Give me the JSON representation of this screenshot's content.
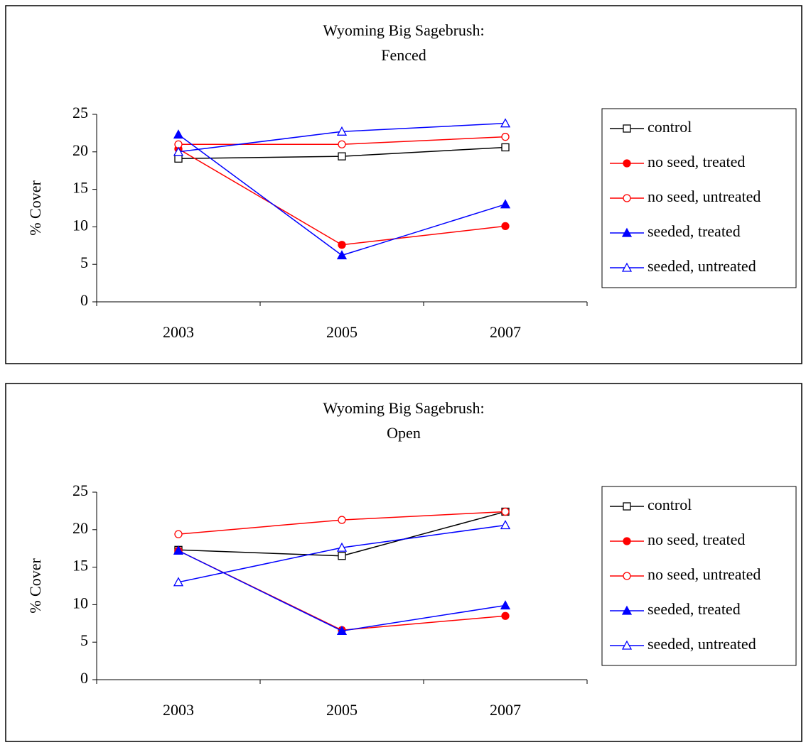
{
  "chart_data": [
    {
      "type": "line",
      "title": [
        "Wyoming Big Sagebrush:",
        "Fenced"
      ],
      "ylabel": "% Cover",
      "categories": [
        "2003",
        "2005",
        "2007"
      ],
      "ylim": [
        0,
        25
      ],
      "yticks": [
        0,
        5,
        10,
        15,
        20,
        25
      ],
      "legend": "right",
      "series": [
        {
          "name": "control",
          "color": "#000000",
          "marker": "square",
          "filled": false,
          "values": [
            19.1,
            19.4,
            20.6
          ]
        },
        {
          "name": "no seed, treated",
          "color": "#ff0000",
          "marker": "circle",
          "filled": true,
          "values": [
            20.4,
            7.6,
            10.1
          ]
        },
        {
          "name": "no seed, untreated",
          "color": "#ff0000",
          "marker": "circle",
          "filled": false,
          "values": [
            21.0,
            21.0,
            22.0
          ]
        },
        {
          "name": "seeded, treated",
          "color": "#0000ff",
          "marker": "triangle",
          "filled": true,
          "values": [
            22.3,
            6.2,
            13.0
          ]
        },
        {
          "name": "seeded, untreated",
          "color": "#0000ff",
          "marker": "triangle",
          "filled": false,
          "values": [
            20.0,
            22.7,
            23.8
          ]
        }
      ]
    },
    {
      "type": "line",
      "title": [
        "Wyoming Big Sagebrush:",
        "Open"
      ],
      "ylabel": "% Cover",
      "categories": [
        "2003",
        "2005",
        "2007"
      ],
      "ylim": [
        0,
        25
      ],
      "yticks": [
        0,
        5,
        10,
        15,
        20,
        25
      ],
      "legend": "right",
      "series": [
        {
          "name": "control",
          "color": "#000000",
          "marker": "square",
          "filled": false,
          "values": [
            17.3,
            16.5,
            22.4
          ]
        },
        {
          "name": "no seed, treated",
          "color": "#ff0000",
          "marker": "circle",
          "filled": true,
          "values": [
            17.2,
            6.6,
            8.5
          ]
        },
        {
          "name": "no seed, untreated",
          "color": "#ff0000",
          "marker": "circle",
          "filled": false,
          "values": [
            19.4,
            21.3,
            22.4
          ]
        },
        {
          "name": "seeded, treated",
          "color": "#0000ff",
          "marker": "triangle",
          "filled": true,
          "values": [
            17.2,
            6.5,
            9.9
          ]
        },
        {
          "name": "seeded, untreated",
          "color": "#0000ff",
          "marker": "triangle",
          "filled": false,
          "values": [
            13.0,
            17.6,
            20.6
          ]
        }
      ]
    }
  ]
}
